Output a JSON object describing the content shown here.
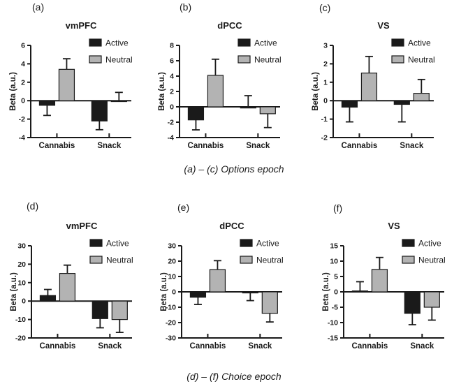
{
  "figure": {
    "caption_top": "(a) – (c) Options epoch",
    "caption_bottom": "(d) – (f) Choice epoch"
  },
  "colors": {
    "active": "#1a1a1a",
    "neutral": "#b3b3b3",
    "axis": "#1a1a1a",
    "background": "#ffffff"
  },
  "chart_data": [
    {
      "panel_letter": "(a)",
      "type": "bar",
      "title": "vmPFC",
      "ylabel": "Beta (a.u.)",
      "ylim": [
        -4,
        6
      ],
      "yticks": [
        -4,
        -2,
        0,
        2,
        4,
        6
      ],
      "categories": [
        "Cannabis",
        "Snack"
      ],
      "legend_position": "top-right",
      "series": [
        {
          "name": "Active",
          "color": "#1a1a1a",
          "values": [
            -0.5,
            -2.2
          ],
          "errors": [
            1.1,
            0.95
          ],
          "error_directions": [
            -1,
            -1
          ]
        },
        {
          "name": "Neutral",
          "color": "#b3b3b3",
          "values": [
            3.4,
            -0.1
          ],
          "errors": [
            1.15,
            1.0
          ],
          "error_directions": [
            1,
            1
          ]
        }
      ]
    },
    {
      "panel_letter": "(b)",
      "type": "bar",
      "title": "dPCC",
      "ylabel": "Beta (a.u.)",
      "ylim": [
        -4,
        8
      ],
      "yticks": [
        -4,
        -2,
        0,
        2,
        4,
        6,
        8
      ],
      "categories": [
        "Cannabis",
        "Snack"
      ],
      "legend_position": "top-right",
      "series": [
        {
          "name": "Active",
          "color": "#1a1a1a",
          "values": [
            -1.7,
            -0.15
          ],
          "errors": [
            1.3,
            1.6
          ],
          "error_directions": [
            -1,
            1
          ]
        },
        {
          "name": "Neutral",
          "color": "#b3b3b3",
          "values": [
            4.1,
            -0.9
          ],
          "errors": [
            2.1,
            1.8
          ],
          "error_directions": [
            1,
            -1
          ]
        }
      ]
    },
    {
      "panel_letter": "(c)",
      "type": "bar",
      "title": "VS",
      "ylabel": "Beta (a.u.)",
      "ylim": [
        -2,
        3
      ],
      "yticks": [
        -2,
        -1,
        0,
        1,
        2,
        3
      ],
      "categories": [
        "Cannabis",
        "Snack"
      ],
      "legend_position": "top-right",
      "series": [
        {
          "name": "Active",
          "color": "#1a1a1a",
          "values": [
            -0.35,
            -0.2
          ],
          "errors": [
            0.8,
            0.95
          ],
          "error_directions": [
            -1,
            -1
          ]
        },
        {
          "name": "Neutral",
          "color": "#b3b3b3",
          "values": [
            1.5,
            0.4
          ],
          "errors": [
            0.9,
            0.75
          ],
          "error_directions": [
            1,
            1
          ]
        }
      ]
    },
    {
      "panel_letter": "(d)",
      "type": "bar",
      "title": "vmPFC",
      "ylabel": "Beta (a.u.)",
      "ylim": [
        -20,
        30
      ],
      "yticks": [
        -20,
        -10,
        0,
        10,
        20,
        30
      ],
      "categories": [
        "Cannabis",
        "Snack"
      ],
      "legend_position": "top-right",
      "series": [
        {
          "name": "Active",
          "color": "#1a1a1a",
          "values": [
            3,
            -9.5
          ],
          "errors": [
            3.3,
            5.0
          ],
          "error_directions": [
            1,
            -1
          ]
        },
        {
          "name": "Neutral",
          "color": "#b3b3b3",
          "values": [
            15,
            -10
          ],
          "errors": [
            4.5,
            7.0
          ],
          "error_directions": [
            1,
            -1
          ]
        }
      ]
    },
    {
      "panel_letter": "(e)",
      "type": "bar",
      "title": "dPCC",
      "ylabel": "Beta (a.u.)",
      "ylim": [
        -30,
        30
      ],
      "yticks": [
        -30,
        -20,
        -10,
        0,
        10,
        20,
        30
      ],
      "categories": [
        "Cannabis",
        "Snack"
      ],
      "legend_position": "top-right",
      "series": [
        {
          "name": "Active",
          "color": "#1a1a1a",
          "values": [
            -3.5,
            -0.7
          ],
          "errors": [
            4.7,
            5.0
          ],
          "error_directions": [
            -1,
            -1
          ]
        },
        {
          "name": "Neutral",
          "color": "#b3b3b3",
          "values": [
            14.5,
            -14
          ],
          "errors": [
            5.8,
            5.6
          ],
          "error_directions": [
            1,
            -1
          ]
        }
      ]
    },
    {
      "panel_letter": "(f)",
      "type": "bar",
      "title": "VS",
      "ylabel": "Beta (a.u.)",
      "ylim": [
        -15,
        15
      ],
      "yticks": [
        -15,
        -10,
        -5,
        0,
        5,
        10,
        15
      ],
      "categories": [
        "Cannabis",
        "Snack"
      ],
      "legend_position": "top-right",
      "series": [
        {
          "name": "Active",
          "color": "#1a1a1a",
          "values": [
            0.3,
            -7
          ],
          "errors": [
            3.0,
            3.7
          ],
          "error_directions": [
            1,
            -1
          ]
        },
        {
          "name": "Neutral",
          "color": "#b3b3b3",
          "values": [
            7.3,
            -5
          ],
          "errors": [
            3.9,
            4.2
          ],
          "error_directions": [
            1,
            -1
          ]
        }
      ]
    }
  ]
}
